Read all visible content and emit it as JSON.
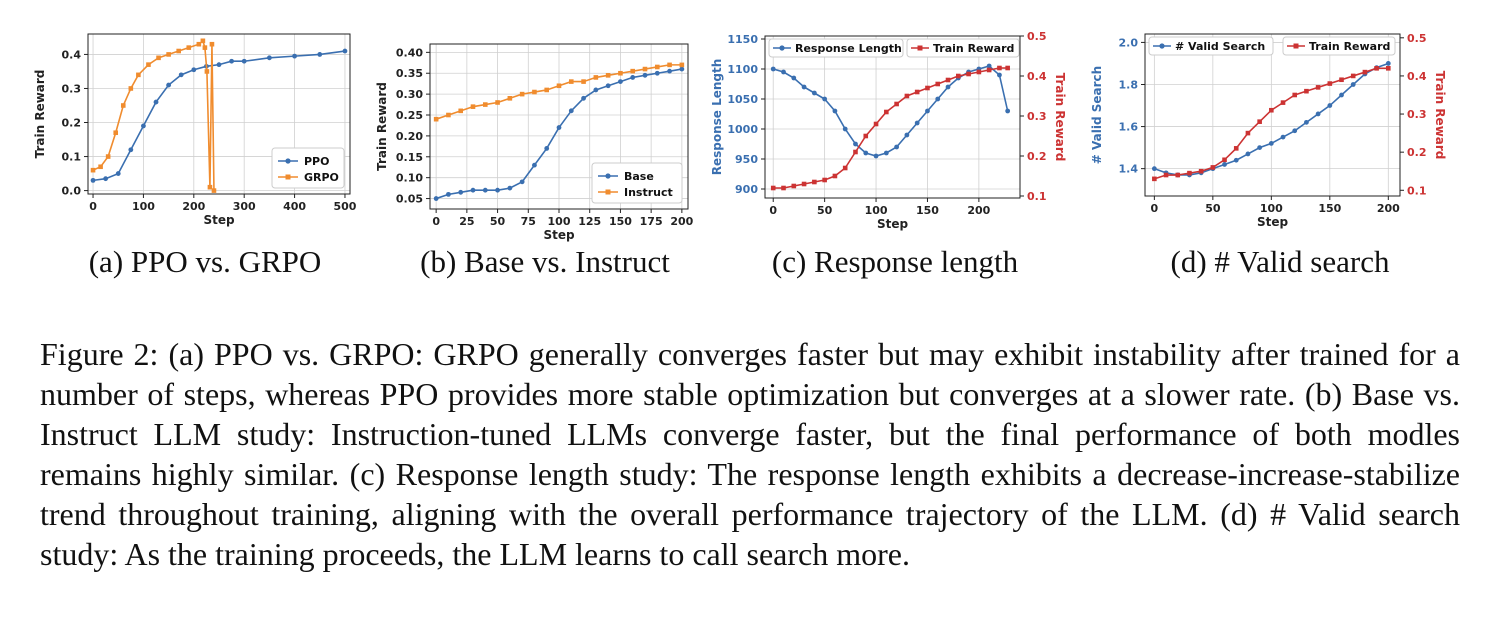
{
  "subcaptions": {
    "a": "(a) PPO vs. GRPO",
    "b": "(b) Base vs. Instruct",
    "c": "(c) Response length",
    "d": "(d) # Valid search"
  },
  "caption": "Figure 2: (a) PPO vs. GRPO: GRPO generally converges faster but may exhibit instability after trained for a number of steps, whereas PPO provides more stable optimization but converges at a slower rate. (b) Base vs. Instruct LLM study: Instruction-tuned LLMs converge faster, but the final performance of both modles remains highly similar. (c) Response length study: The response length exhibits a decrease-increase-stabilize trend throughout training, aligning with the overall performance trajectory of the LLM. (d) # Valid search study: As the training proceeds, the LLM learns to call search more.",
  "colors": {
    "blue": "#3a6fb0",
    "orange": "#f08c2e",
    "red": "#cc3333",
    "grid": "#d0d0d0"
  },
  "chart_data": [
    {
      "id": "a",
      "type": "line",
      "xlabel": "Step",
      "ylabel": "Train Reward",
      "xlim": [
        -10,
        510
      ],
      "ylim": [
        -0.01,
        0.46
      ],
      "xticks": [
        "0",
        "100",
        "200",
        "300",
        "400",
        "500"
      ],
      "yticks": [
        "0.0",
        "0.1",
        "0.2",
        "0.3",
        "0.4"
      ],
      "grid": true,
      "legend_position": "lower-right",
      "series": [
        {
          "name": "PPO",
          "color": "#3a6fb0",
          "marker": "circle",
          "x": [
            0,
            25,
            50,
            75,
            100,
            125,
            150,
            175,
            200,
            225,
            250,
            275,
            300,
            350,
            400,
            450,
            500
          ],
          "y": [
            0.03,
            0.035,
            0.05,
            0.12,
            0.19,
            0.26,
            0.31,
            0.34,
            0.355,
            0.365,
            0.37,
            0.38,
            0.38,
            0.39,
            0.395,
            0.4,
            0.41
          ]
        },
        {
          "name": "GRPO",
          "color": "#f08c2e",
          "marker": "square",
          "x": [
            0,
            15,
            30,
            45,
            60,
            75,
            90,
            110,
            130,
            150,
            170,
            190,
            210,
            218,
            222,
            226,
            232,
            236,
            240
          ],
          "y": [
            0.06,
            0.07,
            0.1,
            0.17,
            0.25,
            0.3,
            0.34,
            0.37,
            0.39,
            0.4,
            0.41,
            0.42,
            0.43,
            0.44,
            0.42,
            0.35,
            0.01,
            0.43,
            0.0
          ]
        }
      ]
    },
    {
      "id": "b",
      "type": "line",
      "xlabel": "Step",
      "ylabel": "Train Reward",
      "xlim": [
        -5,
        205
      ],
      "ylim": [
        0.025,
        0.42
      ],
      "xticks": [
        "0",
        "25",
        "50",
        "75",
        "100",
        "125",
        "150",
        "175",
        "200"
      ],
      "yticks": [
        "0.05",
        "0.10",
        "0.15",
        "0.20",
        "0.25",
        "0.30",
        "0.35",
        "0.40"
      ],
      "grid": true,
      "legend_position": "lower-right",
      "series": [
        {
          "name": "Base",
          "color": "#3a6fb0",
          "marker": "circle",
          "x": [
            0,
            10,
            20,
            30,
            40,
            50,
            60,
            70,
            80,
            90,
            100,
            110,
            120,
            130,
            140,
            150,
            160,
            170,
            180,
            190,
            200
          ],
          "y": [
            0.05,
            0.06,
            0.065,
            0.07,
            0.07,
            0.07,
            0.075,
            0.09,
            0.13,
            0.17,
            0.22,
            0.26,
            0.29,
            0.31,
            0.32,
            0.33,
            0.34,
            0.345,
            0.35,
            0.355,
            0.36
          ]
        },
        {
          "name": "Instruct",
          "color": "#f08c2e",
          "marker": "square",
          "x": [
            0,
            10,
            20,
            30,
            40,
            50,
            60,
            70,
            80,
            90,
            100,
            110,
            120,
            130,
            140,
            150,
            160,
            170,
            180,
            190,
            200
          ],
          "y": [
            0.24,
            0.25,
            0.26,
            0.27,
            0.275,
            0.28,
            0.29,
            0.3,
            0.305,
            0.31,
            0.32,
            0.33,
            0.33,
            0.34,
            0.345,
            0.35,
            0.355,
            0.36,
            0.365,
            0.37,
            0.37
          ]
        }
      ]
    },
    {
      "id": "c",
      "type": "line",
      "xlabel": "Step",
      "ylabel": "Response Length",
      "ylabel_right": "Train Reward",
      "xlim": [
        -8,
        240
      ],
      "ylim": [
        885,
        1155
      ],
      "ylim_right": [
        0.095,
        0.5
      ],
      "xticks": [
        "0",
        "50",
        "100",
        "150",
        "200"
      ],
      "yticks": [
        "900",
        "950",
        "1000",
        "1050",
        "1100",
        "1150"
      ],
      "yticks_right": [
        "0.1",
        "0.2",
        "0.3",
        "0.4",
        "0.5"
      ],
      "grid": true,
      "legend_position": "top",
      "series": [
        {
          "name": "Response Length",
          "axis": "left",
          "color": "#3a6fb0",
          "marker": "circle",
          "x": [
            0,
            10,
            20,
            30,
            40,
            50,
            60,
            70,
            80,
            90,
            100,
            110,
            120,
            130,
            140,
            150,
            160,
            170,
            180,
            190,
            200,
            210,
            220,
            228
          ],
          "y": [
            1100,
            1095,
            1085,
            1070,
            1060,
            1050,
            1030,
            1000,
            975,
            960,
            955,
            960,
            970,
            990,
            1010,
            1030,
            1050,
            1070,
            1085,
            1095,
            1100,
            1105,
            1090,
            1030
          ]
        },
        {
          "name": "Train Reward",
          "axis": "right",
          "color": "#cc3333",
          "marker": "square",
          "x": [
            0,
            10,
            20,
            30,
            40,
            50,
            60,
            70,
            80,
            90,
            100,
            110,
            120,
            130,
            140,
            150,
            160,
            170,
            180,
            190,
            200,
            210,
            220,
            228
          ],
          "y": [
            0.12,
            0.12,
            0.125,
            0.13,
            0.135,
            0.14,
            0.15,
            0.17,
            0.21,
            0.25,
            0.28,
            0.31,
            0.33,
            0.35,
            0.36,
            0.37,
            0.38,
            0.39,
            0.4,
            0.405,
            0.41,
            0.415,
            0.42,
            0.42
          ]
        }
      ]
    },
    {
      "id": "d",
      "type": "line",
      "xlabel": "Step",
      "ylabel": "# Valid Search",
      "ylabel_right": "Train Reward",
      "xlim": [
        -8,
        210
      ],
      "ylim": [
        1.27,
        2.04
      ],
      "ylim_right": [
        0.085,
        0.51
      ],
      "xticks": [
        "0",
        "50",
        "100",
        "150",
        "200"
      ],
      "yticks": [
        "1.4",
        "1.6",
        "1.8",
        "2.0"
      ],
      "yticks_right": [
        "0.1",
        "0.2",
        "0.3",
        "0.4",
        "0.5"
      ],
      "grid": true,
      "legend_position": "top",
      "series": [
        {
          "name": "# Valid Search",
          "axis": "left",
          "color": "#3a6fb0",
          "marker": "circle",
          "x": [
            0,
            10,
            20,
            30,
            40,
            50,
            60,
            70,
            80,
            90,
            100,
            110,
            120,
            130,
            140,
            150,
            160,
            170,
            180,
            190,
            200
          ],
          "y": [
            1.4,
            1.38,
            1.37,
            1.37,
            1.38,
            1.4,
            1.42,
            1.44,
            1.47,
            1.5,
            1.52,
            1.55,
            1.58,
            1.62,
            1.66,
            1.7,
            1.75,
            1.8,
            1.85,
            1.88,
            1.9
          ]
        },
        {
          "name": "Train Reward",
          "axis": "right",
          "color": "#cc3333",
          "marker": "square",
          "x": [
            0,
            10,
            20,
            30,
            40,
            50,
            60,
            70,
            80,
            90,
            100,
            110,
            120,
            130,
            140,
            150,
            160,
            170,
            180,
            190,
            200
          ],
          "y": [
            0.13,
            0.14,
            0.14,
            0.145,
            0.15,
            0.16,
            0.18,
            0.21,
            0.25,
            0.28,
            0.31,
            0.33,
            0.35,
            0.36,
            0.37,
            0.38,
            0.39,
            0.4,
            0.41,
            0.42,
            0.42
          ]
        }
      ]
    }
  ]
}
